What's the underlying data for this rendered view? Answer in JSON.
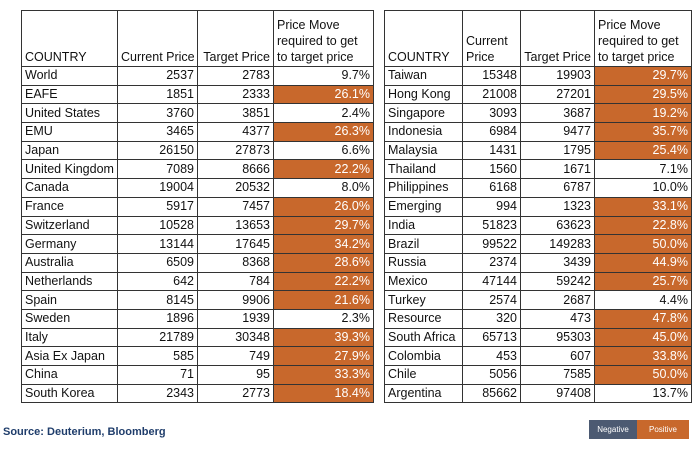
{
  "colors": {
    "positive": "#c8682c",
    "negative": "#4c5a72"
  },
  "headers": {
    "country": "COUNTRY",
    "current_price": "Current Price",
    "current_price_wrapped": [
      "Current",
      "Price"
    ],
    "target_price": "Target Price",
    "price_move_lines": [
      "Price Move",
      "required to get",
      "to target price"
    ]
  },
  "left_table": [
    {
      "country": "World",
      "current": "2537",
      "target": "2783",
      "move": "9.7%",
      "positive": false
    },
    {
      "country": "EAFE",
      "current": "1851",
      "target": "2333",
      "move": "26.1%",
      "positive": true
    },
    {
      "country": "United States",
      "current": "3760",
      "target": "3851",
      "move": "2.4%",
      "positive": false
    },
    {
      "country": "EMU",
      "current": "3465",
      "target": "4377",
      "move": "26.3%",
      "positive": true
    },
    {
      "country": "Japan",
      "current": "26150",
      "target": "27873",
      "move": "6.6%",
      "positive": false
    },
    {
      "country": "United Kingdom",
      "current": "7089",
      "target": "8666",
      "move": "22.2%",
      "positive": true
    },
    {
      "country": "Canada",
      "current": "19004",
      "target": "20532",
      "move": "8.0%",
      "positive": false
    },
    {
      "country": "France",
      "current": "5917",
      "target": "7457",
      "move": "26.0%",
      "positive": true
    },
    {
      "country": "Switzerland",
      "current": "10528",
      "target": "13653",
      "move": "29.7%",
      "positive": true
    },
    {
      "country": "Germany",
      "current": "13144",
      "target": "17645",
      "move": "34.2%",
      "positive": true
    },
    {
      "country": "Australia",
      "current": "6509",
      "target": "8368",
      "move": "28.6%",
      "positive": true
    },
    {
      "country": "Netherlands",
      "current": "642",
      "target": "784",
      "move": "22.2%",
      "positive": true
    },
    {
      "country": "Spain",
      "current": "8145",
      "target": "9906",
      "move": "21.6%",
      "positive": true
    },
    {
      "country": "Sweden",
      "current": "1896",
      "target": "1939",
      "move": "2.3%",
      "positive": false
    },
    {
      "country": "Italy",
      "current": "21789",
      "target": "30348",
      "move": "39.3%",
      "positive": true
    },
    {
      "country": "Asia Ex Japan",
      "current": "585",
      "target": "749",
      "move": "27.9%",
      "positive": true
    },
    {
      "country": "China",
      "current": "71",
      "target": "95",
      "move": "33.3%",
      "positive": true
    },
    {
      "country": "South Korea",
      "current": "2343",
      "target": "2773",
      "move": "18.4%",
      "positive": true
    }
  ],
  "right_table": [
    {
      "country": "Taiwan",
      "current": "15348",
      "target": "19903",
      "move": "29.7%",
      "positive": true
    },
    {
      "country": "Hong Kong",
      "current": "21008",
      "target": "27201",
      "move": "29.5%",
      "positive": true
    },
    {
      "country": "Singapore",
      "current": "3093",
      "target": "3687",
      "move": "19.2%",
      "positive": true
    },
    {
      "country": "Indonesia",
      "current": "6984",
      "target": "9477",
      "move": "35.7%",
      "positive": true
    },
    {
      "country": "Malaysia",
      "current": "1431",
      "target": "1795",
      "move": "25.4%",
      "positive": true
    },
    {
      "country": "Thailand",
      "current": "1560",
      "target": "1671",
      "move": "7.1%",
      "positive": false
    },
    {
      "country": "Philippines",
      "current": "6168",
      "target": "6787",
      "move": "10.0%",
      "positive": false
    },
    {
      "country": "Emerging",
      "current": "994",
      "target": "1323",
      "move": "33.1%",
      "positive": true
    },
    {
      "country": "India",
      "current": "51823",
      "target": "63623",
      "move": "22.8%",
      "positive": true
    },
    {
      "country": "Brazil",
      "current": "99522",
      "target": "149283",
      "move": "50.0%",
      "positive": true
    },
    {
      "country": "Russia",
      "current": "2374",
      "target": "3439",
      "move": "44.9%",
      "positive": true
    },
    {
      "country": "Mexico",
      "current": "47144",
      "target": "59242",
      "move": "25.7%",
      "positive": true
    },
    {
      "country": "Turkey",
      "current": "2574",
      "target": "2687",
      "move": "4.4%",
      "positive": false
    },
    {
      "country": "Resource",
      "current": "320",
      "target": "473",
      "move": "47.8%",
      "positive": true
    },
    {
      "country": "South Africa",
      "current": "65713",
      "target": "95303",
      "move": "45.0%",
      "positive": true
    },
    {
      "country": "Colombia",
      "current": "453",
      "target": "607",
      "move": "33.8%",
      "positive": true
    },
    {
      "country": "Chile",
      "current": "5056",
      "target": "7585",
      "move": "50.0%",
      "positive": true
    },
    {
      "country": "Argentina",
      "current": "85662",
      "target": "97408",
      "move": "13.7%",
      "positive": false
    }
  ],
  "footer": {
    "source": "Source: Deuterium, Bloomberg"
  },
  "legend": {
    "negative": "Negative",
    "positive": "Positive"
  }
}
